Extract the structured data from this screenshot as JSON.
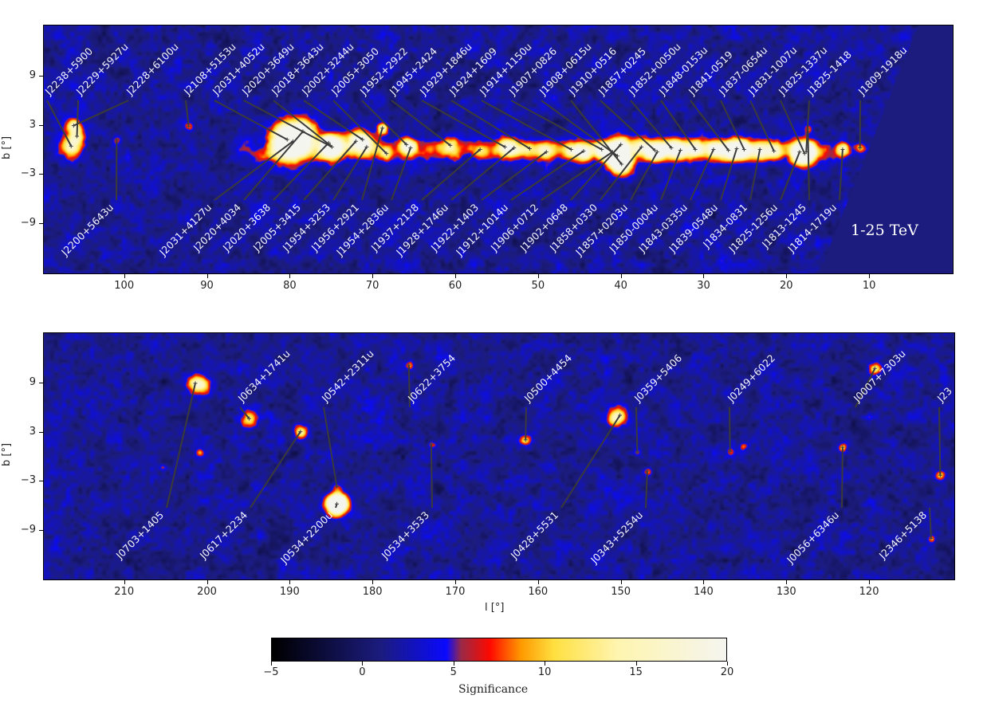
{
  "chart_data": {
    "type": "heatmap",
    "panels": [
      {
        "id": "top",
        "xlim": [
          109.7,
          -0.1
        ],
        "ylim": [
          -15.1,
          15.1
        ],
        "xticks": [
          100,
          90,
          80,
          70,
          60,
          50,
          40,
          30,
          20,
          10
        ],
        "yticks": [
          9,
          3,
          -3,
          -9
        ],
        "ylabel": "b [°]",
        "energy_label": "1-25 TeV",
        "plane_ridge": {
          "l_range": [
            15,
            85
          ],
          "amplitude": 4.5
        },
        "sources": [
          {
            "name": "J2238+5900",
            "l": 106.4,
            "b": 0.4,
            "sig": 14,
            "w": 0.9,
            "row": "top"
          },
          {
            "name": "J2229+5927u",
            "l": 105.7,
            "b": 1.6,
            "sig": 9,
            "w": 0.6,
            "row": "top"
          },
          {
            "name": "J2228+6100u",
            "l": 106.1,
            "b": 2.9,
            "sig": 15,
            "w": 0.6,
            "row": "top"
          },
          {
            "name": "J2200+5643u",
            "l": 100.9,
            "b": 1.2,
            "sig": 6,
            "w": 0.4,
            "row": "bottom"
          },
          {
            "name": "J2108+5153u",
            "l": 92.2,
            "b": 2.8,
            "sig": 7,
            "w": 0.4,
            "row": "top"
          },
          {
            "name": "J2031+4127u",
            "l": 79.6,
            "b": 1.0,
            "sig": 18,
            "w": 1.6,
            "row": "bottom"
          },
          {
            "name": "J2031+4052u",
            "l": 80.3,
            "b": 1.2,
            "sig": 14,
            "w": 1.4,
            "row": "top"
          },
          {
            "name": "J2020+4034",
            "l": 78.4,
            "b": 2.2,
            "sig": 12,
            "w": 1.0,
            "row": "bottom"
          },
          {
            "name": "J2020+3649u",
            "l": 74.9,
            "b": 0.3,
            "sig": 14,
            "w": 1.0,
            "row": "top"
          },
          {
            "name": "J2018+3643u",
            "l": 75.1,
            "b": 0.5,
            "sig": 10,
            "w": 0.8,
            "row": "top"
          },
          {
            "name": "J2020+3638",
            "l": 75.3,
            "b": 0.8,
            "sig": 8,
            "w": 0.8,
            "row": "bottom"
          },
          {
            "name": "J2005+3415",
            "l": 72.0,
            "b": 1.0,
            "sig": 12,
            "w": 0.9,
            "row": "bottom"
          },
          {
            "name": "J2002+3244u",
            "l": 71.2,
            "b": 1.2,
            "sig": 10,
            "w": 0.8,
            "row": "top"
          },
          {
            "name": "J1954+3253",
            "l": 70.7,
            "b": 0.3,
            "sig": 8,
            "w": 0.8,
            "row": "bottom"
          },
          {
            "name": "J2005+3050",
            "l": 68.3,
            "b": -0.5,
            "sig": 8,
            "w": 0.6,
            "row": "top"
          },
          {
            "name": "J1956+2921",
            "l": 68.8,
            "b": 2.6,
            "sig": 15,
            "w": 0.45,
            "row": "bottom"
          },
          {
            "name": "J1952+2922",
            "l": 65.9,
            "b": 0.6,
            "sig": 12,
            "w": 0.7,
            "row": "top"
          },
          {
            "name": "J1954+2836u",
            "l": 65.4,
            "b": 0.2,
            "sig": 8,
            "w": 0.6,
            "row": "bottom"
          },
          {
            "name": "J1945+2424",
            "l": 60.6,
            "b": 0.5,
            "sig": 10,
            "w": 0.8,
            "row": "top"
          },
          {
            "name": "J1937+2128",
            "l": 57.0,
            "b": 0.0,
            "sig": 7,
            "w": 0.6,
            "row": "bottom"
          },
          {
            "name": "J1929+1846u",
            "l": 54.0,
            "b": 0.3,
            "sig": 12,
            "w": 0.8,
            "row": "top"
          },
          {
            "name": "J1928+1746u",
            "l": 52.9,
            "b": 0.2,
            "sig": 10,
            "w": 0.7,
            "row": "bottom"
          },
          {
            "name": "J1924+1609",
            "l": 51.0,
            "b": 0.1,
            "sig": 9,
            "w": 0.7,
            "row": "top"
          },
          {
            "name": "J1922+1403",
            "l": 49.0,
            "b": -0.3,
            "sig": 12,
            "w": 0.7,
            "row": "bottom"
          },
          {
            "name": "J1914+1150u",
            "l": 46.0,
            "b": 0.0,
            "sig": 10,
            "w": 0.7,
            "row": "top"
          },
          {
            "name": "J1912+1014u",
            "l": 44.5,
            "b": -0.2,
            "sig": 14,
            "w": 0.8,
            "row": "bottom"
          },
          {
            "name": "J1907+0826",
            "l": 42.3,
            "b": 0.0,
            "sig": 12,
            "w": 0.7,
            "row": "top"
          },
          {
            "name": "J1906+0712",
            "l": 41.0,
            "b": -0.3,
            "sig": 16,
            "w": 0.8,
            "row": "bottom"
          },
          {
            "name": "J1908+0615u",
            "l": 40.4,
            "b": -0.8,
            "sig": 20,
            "w": 1.0,
            "row": "top"
          },
          {
            "name": "J1910+0516",
            "l": 39.9,
            "b": -1.8,
            "sig": 14,
            "w": 0.9,
            "row": "top"
          },
          {
            "name": "J1902+0648",
            "l": 40.0,
            "b": 0.6,
            "sig": 10,
            "w": 0.7,
            "row": "bottom"
          },
          {
            "name": "J1858+0330",
            "l": 37.5,
            "b": 0.3,
            "sig": 14,
            "w": 0.8,
            "row": "bottom"
          },
          {
            "name": "J1857+0245",
            "l": 35.9,
            "b": -0.1,
            "sig": 14,
            "w": 0.8,
            "row": "top"
          },
          {
            "name": "J1857+0203u",
            "l": 35.6,
            "b": -0.3,
            "sig": 10,
            "w": 0.7,
            "row": "bottom"
          },
          {
            "name": "J1852+0050u",
            "l": 33.9,
            "b": 0.2,
            "sig": 14,
            "w": 0.8,
            "row": "top"
          },
          {
            "name": "J1850-0004u",
            "l": 32.8,
            "b": -0.1,
            "sig": 12,
            "w": 0.8,
            "row": "bottom"
          },
          {
            "name": "J1848-0153u",
            "l": 31.0,
            "b": 0.0,
            "sig": 14,
            "w": 0.8,
            "row": "top"
          },
          {
            "name": "J1843-0335u",
            "l": 28.8,
            "b": 0.0,
            "sig": 14,
            "w": 0.8,
            "row": "bottom"
          },
          {
            "name": "J1841-0519",
            "l": 27.0,
            "b": -0.1,
            "sig": 14,
            "w": 0.8,
            "row": "top"
          },
          {
            "name": "J1839-0548u",
            "l": 26.0,
            "b": 0.1,
            "sig": 12,
            "w": 0.8,
            "row": "bottom"
          },
          {
            "name": "J1837-0654u",
            "l": 25.1,
            "b": 0.0,
            "sig": 14,
            "w": 0.8,
            "row": "top"
          },
          {
            "name": "J1834-0831",
            "l": 23.2,
            "b": 0.0,
            "sig": 12,
            "w": 0.8,
            "row": "bottom"
          },
          {
            "name": "J1831-1007u",
            "l": 21.5,
            "b": -0.2,
            "sig": 12,
            "w": 0.7,
            "row": "top"
          },
          {
            "name": "J1825-1256u",
            "l": 18.4,
            "b": -0.3,
            "sig": 14,
            "w": 0.8,
            "row": "bottom"
          },
          {
            "name": "J1825-1337u",
            "l": 17.8,
            "b": -0.5,
            "sig": 16,
            "w": 0.9,
            "row": "top"
          },
          {
            "name": "J1825-1418",
            "l": 17.6,
            "b": -0.3,
            "sig": 12,
            "w": 0.8,
            "row": "top"
          },
          {
            "name": "J1813-1245",
            "l": 17.4,
            "b": 2.5,
            "sig": 6,
            "w": 0.35,
            "row": "bottom"
          },
          {
            "name": "J1814-1719u",
            "l": 13.2,
            "b": 0.0,
            "sig": 13,
            "w": 0.6,
            "row": "bottom"
          },
          {
            "name": "J1809-1918u",
            "l": 11.1,
            "b": 0.2,
            "sig": 10,
            "w": 0.45,
            "row": "top"
          }
        ]
      },
      {
        "id": "bottom",
        "xlim": [
          219.7,
          109.7
        ],
        "ylim": [
          -15,
          15
        ],
        "xticks": [
          210,
          200,
          190,
          180,
          170,
          160,
          150,
          140,
          130,
          120
        ],
        "yticks": [
          9,
          3,
          -3,
          -9
        ],
        "xlabel": "l [°]",
        "ylabel": "b [°]",
        "sources": [
          {
            "name": "J0703+1405",
            "l": 201.4,
            "b": 8.9,
            "sig": 9,
            "w": 0.7,
            "row": "bottom"
          },
          {
            "name": "J0634+1741u",
            "l": 194.9,
            "b": 4.6,
            "sig": 11,
            "w": 0.7,
            "row": "top"
          },
          {
            "name": "J0617+2234",
            "l": 188.7,
            "b": 3.0,
            "sig": 13,
            "w": 0.6,
            "row": "bottom"
          },
          {
            "name": "J0542+2311u",
            "l": 184.3,
            "b": -3.7,
            "sig": 5,
            "w": 0.4,
            "row": "top"
          },
          {
            "name": "J0534+2200u",
            "l": 184.3,
            "b": -5.8,
            "sig": 40,
            "w": 0.8,
            "row": "bottom"
          },
          {
            "name": "J0622+3754",
            "l": 175.6,
            "b": 11.1,
            "sig": 7,
            "w": 0.35,
            "row": "top"
          },
          {
            "name": "J0534+3533",
            "l": 172.9,
            "b": 1.5,
            "sig": 5,
            "w": 0.3,
            "row": "bottom"
          },
          {
            "name": "J0500+4454",
            "l": 161.5,
            "b": 2.0,
            "sig": 9,
            "w": 0.45,
            "row": "top"
          },
          {
            "name": "J0428+5531",
            "l": 150.1,
            "b": 5.0,
            "sig": 10,
            "w": 0.8,
            "row": "bottom"
          },
          {
            "name": "J0359+5406",
            "l": 148.0,
            "b": 0.5,
            "sig": 5,
            "w": 0.3,
            "row": "top"
          },
          {
            "name": "J0343+5254u",
            "l": 146.8,
            "b": -1.8,
            "sig": 8,
            "w": 0.35,
            "row": "bottom"
          },
          {
            "name": "J0249+6022",
            "l": 136.8,
            "b": 0.6,
            "sig": 5,
            "w": 0.3,
            "row": "top"
          },
          {
            "name": "J0056+6346u",
            "l": 123.2,
            "b": 1.1,
            "sig": 9,
            "w": 0.35,
            "row": "bottom"
          },
          {
            "name": "J0007+7303u",
            "l": 119.3,
            "b": 10.7,
            "sig": 12,
            "w": 0.5,
            "row": "top"
          },
          {
            "name": "J2346+5138",
            "l": 112.5,
            "b": -10.0,
            "sig": 8,
            "w": 0.3,
            "row": "bottom"
          },
          {
            "name": "J23",
            "l": 111.4,
            "b": -2.3,
            "sig": 9,
            "w": 0.4,
            "row": "top"
          }
        ],
        "extra_hotspots": [
          {
            "l": 200.6,
            "b": 8.6,
            "sig": 9,
            "w": 0.7
          },
          {
            "l": 200.9,
            "b": 0.5,
            "sig": 8,
            "w": 0.35
          },
          {
            "l": 205.3,
            "b": -1.3,
            "sig": 6,
            "w": 0.3
          },
          {
            "l": 135.2,
            "b": 1.2,
            "sig": 6,
            "w": 0.3
          },
          {
            "l": 150.8,
            "b": 4.6,
            "sig": 9,
            "w": 0.6
          }
        ]
      }
    ],
    "colorbar": {
      "label": "Significance",
      "range": [
        -5,
        20
      ],
      "ticks": [
        "−5",
        "0",
        "5",
        "10",
        "15",
        "20"
      ],
      "tick_values": [
        -5,
        0,
        5,
        10,
        15,
        20
      ],
      "stops": [
        {
          "v": -5,
          "c": "#000000"
        },
        {
          "v": -1.5,
          "c": "#10104a"
        },
        {
          "v": 1,
          "c": "#1c1c80"
        },
        {
          "v": 4.6,
          "c": "#0a0aff"
        },
        {
          "v": 5.4,
          "c": "#9a2a48"
        },
        {
          "v": 7,
          "c": "#ff0a00"
        },
        {
          "v": 8.7,
          "c": "#ff9a00"
        },
        {
          "v": 10.5,
          "c": "#ffe040"
        },
        {
          "v": 14,
          "c": "#fff5b0"
        },
        {
          "v": 20,
          "c": "#f5f5f0"
        }
      ]
    }
  }
}
